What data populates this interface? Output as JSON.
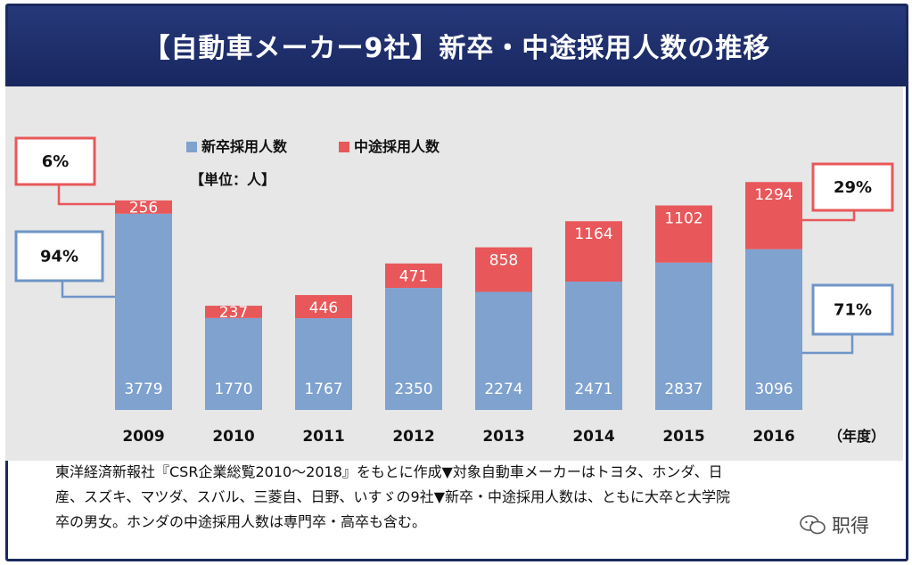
{
  "title": "【自動車メーカー9社】新卒・中途採用人数の推移",
  "chart_data": {
    "type": "bar",
    "stacked": true,
    "categories": [
      "2009",
      "2010",
      "2011",
      "2012",
      "2013",
      "2014",
      "2015",
      "2016"
    ],
    "x_unit_label": "（年度）",
    "series": [
      {
        "name": "新卒採用人数",
        "color": "#7fa2cf",
        "values": [
          3779,
          1770,
          1767,
          2350,
          2274,
          2471,
          2837,
          3096
        ]
      },
      {
        "name": "中途採用人数",
        "color": "#e8585a",
        "values": [
          256,
          237,
          446,
          471,
          858,
          1164,
          1102,
          1294
        ]
      }
    ],
    "unit": "【単位：人】",
    "ylim": [
      0,
      4600
    ],
    "grid": false,
    "legend_position": "top-center",
    "callouts": {
      "2009_mid_career_share": "6%",
      "2009_new_grad_share": "94%",
      "2016_mid_career_share": "29%",
      "2016_new_grad_share": "71%"
    }
  },
  "footnote": {
    "line1": "東洋経済新報社『CSR企業総覧2010～2018』をもとに作成▼対象自動車メーカーはトヨタ、ホンダ、日",
    "line2": "産、スズキ、マツダ、スバル、三菱自、日野、いすゞの9社▼新卒・中途採用人数は、ともに大卒と大学院",
    "line3": "卒の男女。ホンダの中途採用人数は専門卒・高卒も含む。"
  },
  "watermark": "职得",
  "colors": {
    "title_bg": "#1b2a5c",
    "chart_bg": "#e7e7e7",
    "new_grad": "#7fa2cf",
    "mid_career": "#e8585a"
  }
}
